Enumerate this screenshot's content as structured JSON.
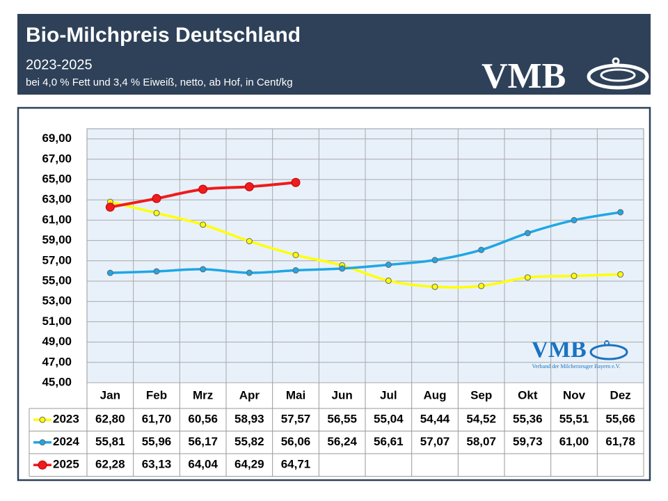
{
  "chart_data": {
    "type": "line",
    "title": "Bio-Milchpreis Deutschland",
    "subtitle": "2023-2025",
    "note": "bei 4,0 % Fett und 3,4 % Eiweiß, netto, ab Hof, in Cent/kg",
    "logo": {
      "text": "VMB",
      "caption": "Verband der Milcherzeuger Bayern e.V."
    },
    "categories": [
      "Jan",
      "Feb",
      "Mrz",
      "Apr",
      "Mai",
      "Jun",
      "Jul",
      "Aug",
      "Sep",
      "Okt",
      "Nov",
      "Dez"
    ],
    "series": [
      {
        "name": "2023",
        "color": "#ffff00",
        "values": [
          62.8,
          61.7,
          60.56,
          58.93,
          57.57,
          56.55,
          55.04,
          54.44,
          54.52,
          55.36,
          55.51,
          55.66
        ],
        "value_labels": [
          "62,80",
          "61,70",
          "60,56",
          "58,93",
          "57,57",
          "56,55",
          "55,04",
          "54,44",
          "54,52",
          "55,36",
          "55,51",
          "55,66"
        ]
      },
      {
        "name": "2024",
        "color": "#1ea7e6",
        "values": [
          55.81,
          55.96,
          56.17,
          55.82,
          56.06,
          56.24,
          56.61,
          57.07,
          58.07,
          59.73,
          61.0,
          61.78
        ],
        "value_labels": [
          "55,81",
          "55,96",
          "56,17",
          "55,82",
          "56,06",
          "56,24",
          "56,61",
          "57,07",
          "58,07",
          "59,73",
          "61,00",
          "61,78"
        ]
      },
      {
        "name": "2025",
        "color": "#ee1c1c",
        "values": [
          62.28,
          63.13,
          64.04,
          64.29,
          64.71,
          null,
          null,
          null,
          null,
          null,
          null,
          null
        ],
        "value_labels": [
          "62,28",
          "63,13",
          "64,04",
          "64,29",
          "64,71",
          null,
          null,
          null,
          null,
          null,
          null,
          null
        ]
      }
    ],
    "ylim": [
      45,
      70
    ],
    "yticks": [
      {
        "value": 45,
        "label": "45,00"
      },
      {
        "value": 47,
        "label": "47,00"
      },
      {
        "value": 49,
        "label": "49,00"
      },
      {
        "value": 51,
        "label": "51,00"
      },
      {
        "value": 53,
        "label": "53,00"
      },
      {
        "value": 55,
        "label": "55,00"
      },
      {
        "value": 57,
        "label": "57,00"
      },
      {
        "value": 59,
        "label": "59,00"
      },
      {
        "value": 61,
        "label": "61,00"
      },
      {
        "value": 63,
        "label": "63,00"
      },
      {
        "value": 65,
        "label": "65,00"
      },
      {
        "value": 67,
        "label": "67,00"
      },
      {
        "value": 69,
        "label": "69,00"
      }
    ],
    "grid": true
  }
}
